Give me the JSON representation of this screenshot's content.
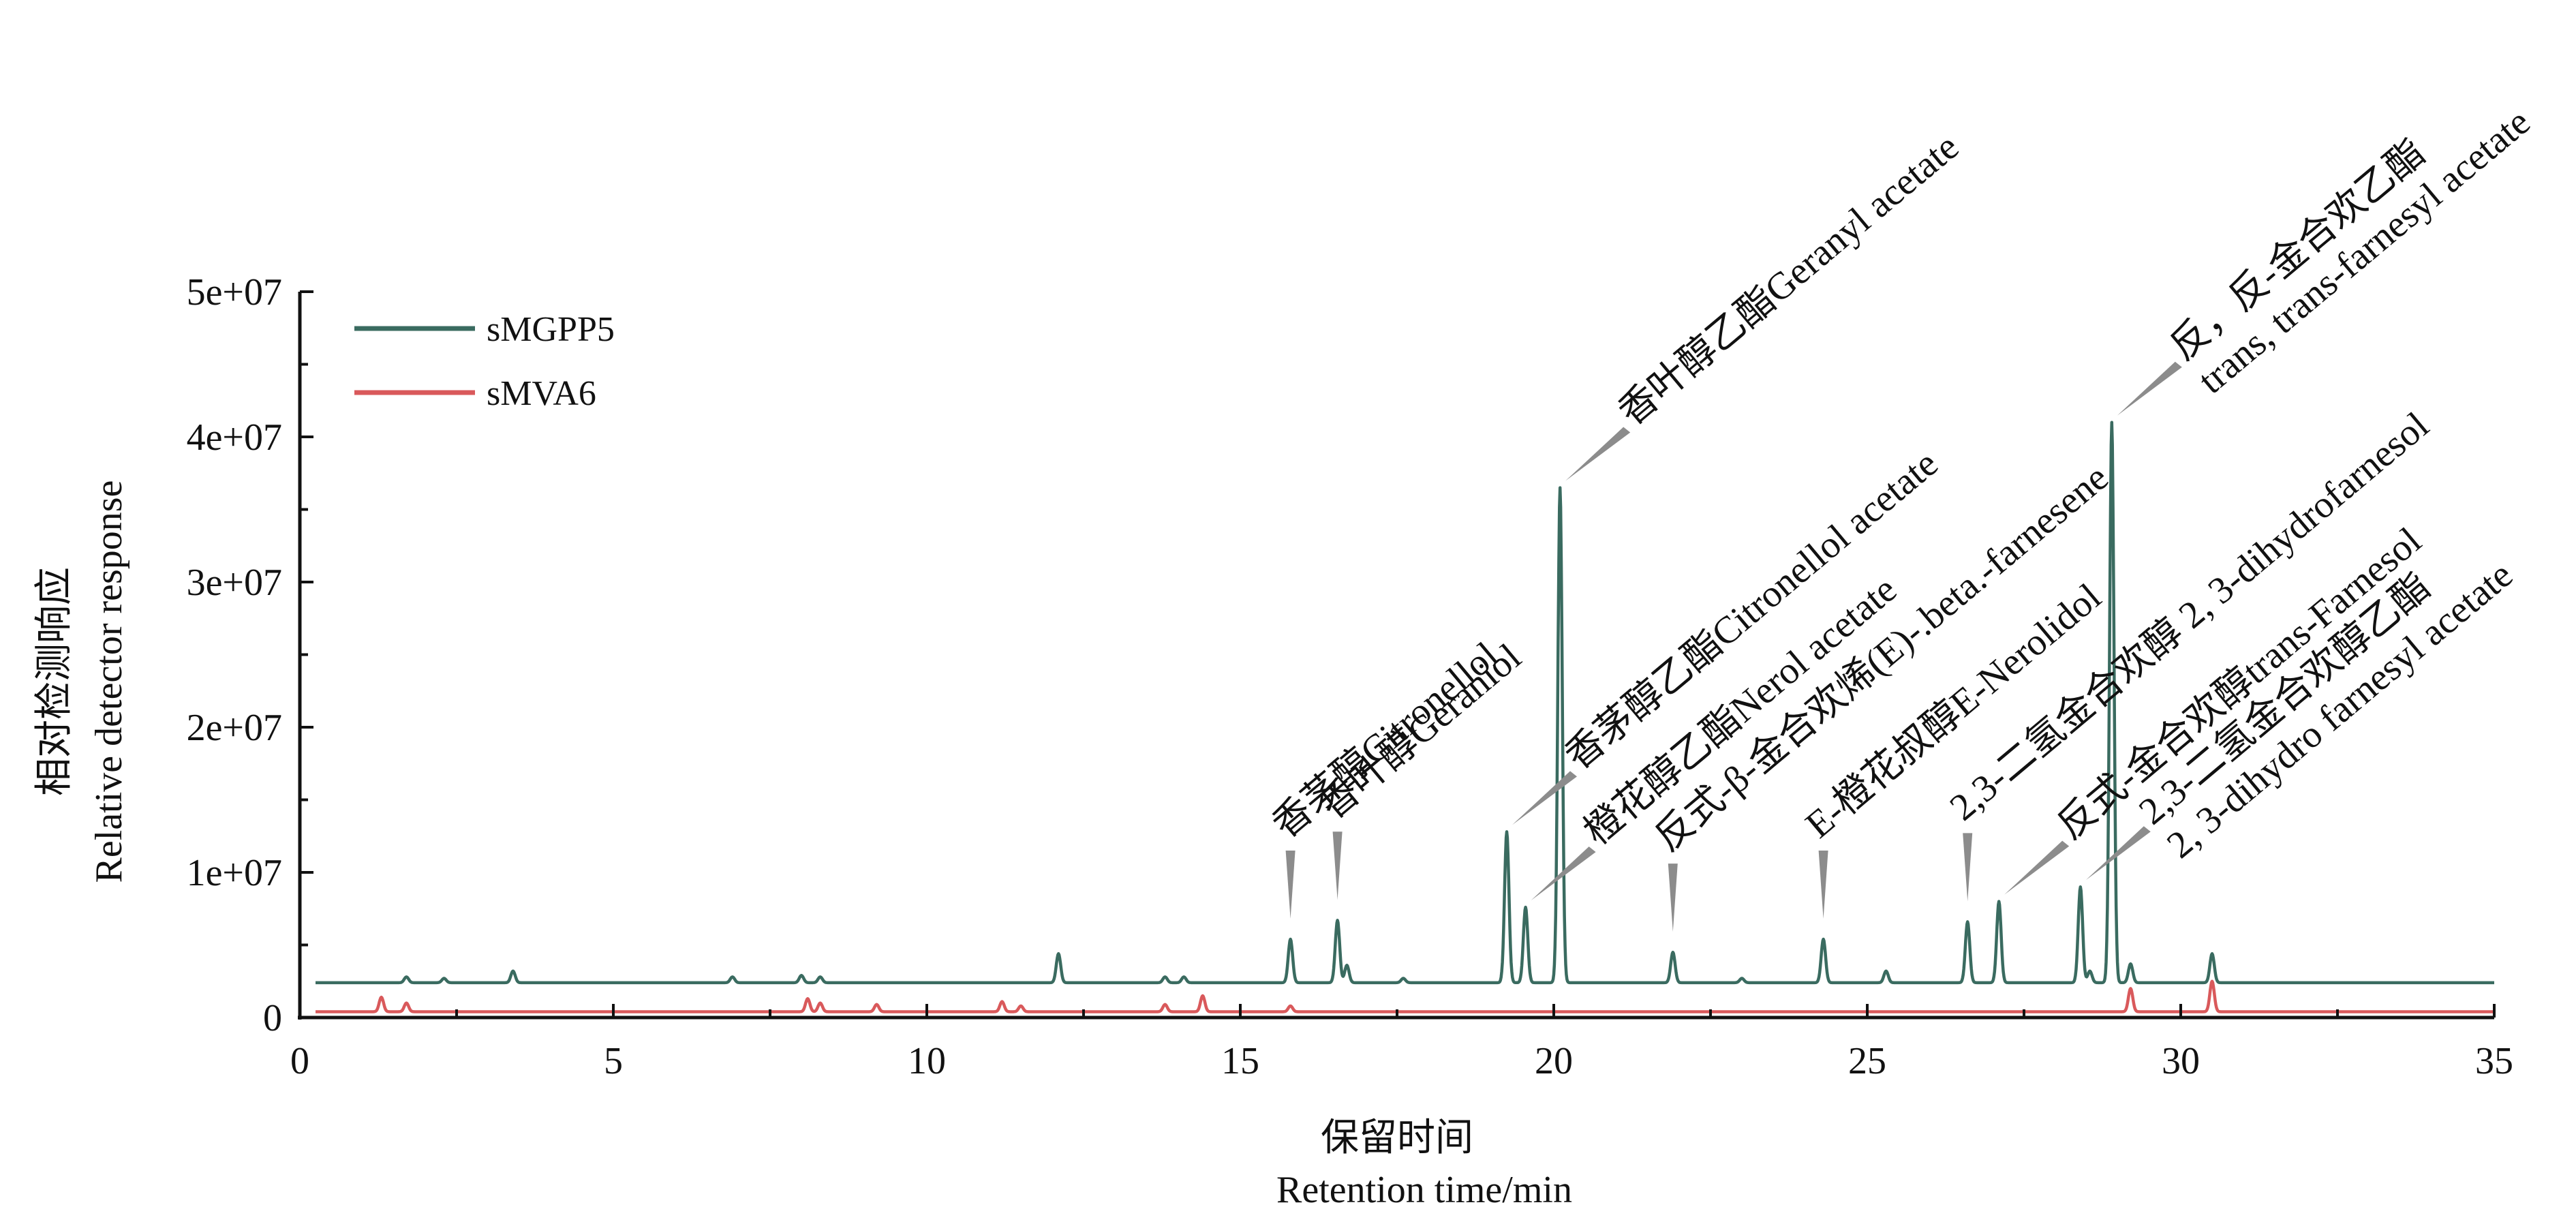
{
  "chart_data": {
    "type": "line",
    "title": "",
    "xlabel": [
      "保留时间",
      "Retention time/min"
    ],
    "ylabel": [
      "相对检测响应",
      "Relative detector response"
    ],
    "xlim": [
      0,
      35
    ],
    "ylim": [
      0,
      50000000
    ],
    "x_ticks": [
      0,
      5,
      10,
      15,
      20,
      25,
      30,
      35
    ],
    "x_tick_labels": [
      "0",
      "5",
      "10",
      "15",
      "20",
      "25",
      "30",
      "35"
    ],
    "y_ticks": [
      0,
      10000000,
      20000000,
      30000000,
      40000000,
      50000000
    ],
    "y_tick_labels": [
      "0",
      "1e+07",
      "2e+07",
      "3e+07",
      "4e+07",
      "5e+07"
    ],
    "grid": false,
    "legend_position": "top-left",
    "series": [
      {
        "name": "sMGPP5",
        "color": "#3a6b60",
        "baseline": 2400000,
        "x_start": 0.25,
        "x_end": 35,
        "peaks": [
          [
            1.7,
            2800000
          ],
          [
            2.3,
            2700000
          ],
          [
            3.4,
            3200000
          ],
          [
            6.9,
            2800000
          ],
          [
            8.0,
            2900000
          ],
          [
            8.3,
            2800000
          ],
          [
            12.1,
            4400000
          ],
          [
            13.8,
            2800000
          ],
          [
            14.1,
            2800000
          ],
          [
            15.8,
            5400000
          ],
          [
            16.55,
            6700000
          ],
          [
            16.7,
            3600000
          ],
          [
            17.6,
            2700000
          ],
          [
            19.25,
            12800000
          ],
          [
            19.55,
            7600000
          ],
          [
            20.1,
            36500000
          ],
          [
            21.9,
            4500000
          ],
          [
            23.0,
            2700000
          ],
          [
            24.3,
            5400000
          ],
          [
            25.3,
            3200000
          ],
          [
            26.6,
            6600000
          ],
          [
            27.1,
            8000000
          ],
          [
            28.4,
            9000000
          ],
          [
            28.55,
            3200000
          ],
          [
            28.9,
            41000000
          ],
          [
            29.2,
            3700000
          ],
          [
            30.5,
            4400000
          ]
        ]
      },
      {
        "name": "sMVA6",
        "color": "#d9595b",
        "baseline": 400000,
        "x_start": 0.25,
        "x_end": 35,
        "peaks": [
          [
            1.3,
            1400000
          ],
          [
            1.7,
            1000000
          ],
          [
            8.1,
            1300000
          ],
          [
            8.3,
            1000000
          ],
          [
            9.2,
            900000
          ],
          [
            11.2,
            1100000
          ],
          [
            11.5,
            800000
          ],
          [
            13.8,
            900000
          ],
          [
            14.4,
            1500000
          ],
          [
            15.8,
            800000
          ],
          [
            29.2,
            2000000
          ],
          [
            30.5,
            2500000
          ]
        ]
      }
    ],
    "annotations": [
      {
        "x": 15.8,
        "y": 5400000,
        "pointer": "triangle",
        "lines": [
          "香茅醇Citronellol"
        ]
      },
      {
        "x": 16.55,
        "y": 6700000,
        "pointer": "triangle",
        "lines": [
          "香叶醇Geraniol"
        ]
      },
      {
        "x": 19.25,
        "y": 12800000,
        "pointer": "line",
        "lines": [
          "香茅醇乙酯Citronellol acetate"
        ]
      },
      {
        "x": 19.55,
        "y": 7600000,
        "pointer": "line",
        "lines": [
          "橙花醇乙酯Nerol acetate"
        ]
      },
      {
        "x": 20.1,
        "y": 36500000,
        "pointer": "line",
        "lines": [
          "香叶醇乙酯Geranyl acetate"
        ]
      },
      {
        "x": 21.9,
        "y": 4500000,
        "pointer": "triangle",
        "lines": [
          "反式-β-金合欢烯(E)-.beta.-farnesene"
        ]
      },
      {
        "x": 24.3,
        "y": 5400000,
        "pointer": "triangle",
        "lines": [
          "E-橙花叔醇E-Nerolidol"
        ]
      },
      {
        "x": 26.6,
        "y": 6600000,
        "pointer": "triangle",
        "lines": [
          "2,3-二氢金合欢醇  2, 3-dihydrofarnesol"
        ]
      },
      {
        "x": 27.1,
        "y": 8000000,
        "pointer": "line",
        "lines": [
          "反式-金合欢醇trans-Farnesol"
        ]
      },
      {
        "x": 28.4,
        "y": 9000000,
        "pointer": "line",
        "lines": [
          "2,3-二氢金合欢醇乙酯",
          "2, 3-dihydro farnesyl acetate"
        ]
      },
      {
        "x": 28.9,
        "y": 41000000,
        "pointer": "line",
        "lines": [
          "反，反-金合欢乙酯",
          "trans, trans-farnesyl acetate"
        ]
      }
    ]
  }
}
